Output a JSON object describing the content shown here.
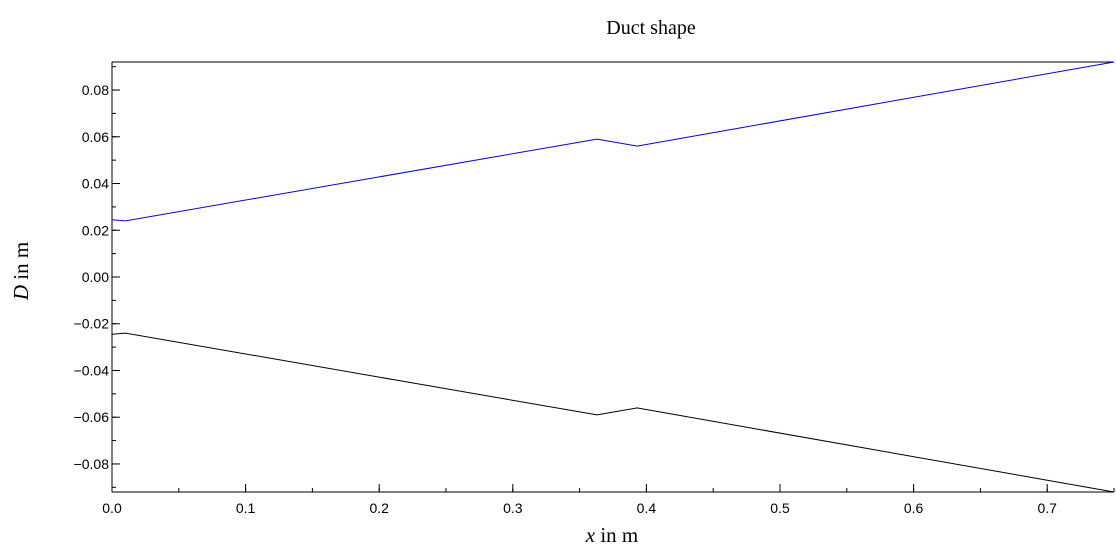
{
  "chart_data": {
    "type": "line",
    "title": "Duct shape",
    "xlabel": {
      "symbol": "x",
      "rest": " in m"
    },
    "ylabel": {
      "symbol": "D",
      "rest": " in m"
    },
    "xlim": [
      0,
      0.75
    ],
    "ylim": [
      -0.092,
      0.092
    ],
    "grid": false,
    "x_ticks": [
      {
        "value": 0.0,
        "label": "0.0"
      },
      {
        "value": 0.1,
        "label": "0.1"
      },
      {
        "value": 0.2,
        "label": "0.2"
      },
      {
        "value": 0.3,
        "label": "0.3"
      },
      {
        "value": 0.4,
        "label": "0.4"
      },
      {
        "value": 0.5,
        "label": "0.5"
      },
      {
        "value": 0.6,
        "label": "0.6"
      },
      {
        "value": 0.7,
        "label": "0.7"
      }
    ],
    "y_ticks": [
      {
        "value": 0.08,
        "label": "0.08"
      },
      {
        "value": 0.06,
        "label": "0.06"
      },
      {
        "value": 0.04,
        "label": "0.04"
      },
      {
        "value": 0.02,
        "label": "0.02"
      },
      {
        "value": 0.0,
        "label": "0.00"
      },
      {
        "value": -0.02,
        "label": "−0.02"
      },
      {
        "value": -0.04,
        "label": "−0.04"
      },
      {
        "value": -0.06,
        "label": "−0.06"
      },
      {
        "value": -0.08,
        "label": "−0.08"
      }
    ],
    "x_minor_step": 0.05,
    "y_minor_step": 0.01,
    "series": [
      {
        "color": "#0000ff",
        "points": [
          [
            0.0,
            0.0245
          ],
          [
            0.01,
            0.024
          ],
          [
            0.363,
            0.059
          ],
          [
            0.393,
            0.056
          ],
          [
            0.75,
            0.092
          ]
        ]
      },
      {
        "color": "#000000",
        "points": [
          [
            0.0,
            -0.0245
          ],
          [
            0.01,
            -0.024
          ],
          [
            0.363,
            -0.059
          ],
          [
            0.393,
            -0.056
          ],
          [
            0.75,
            -0.092
          ]
        ]
      }
    ]
  }
}
